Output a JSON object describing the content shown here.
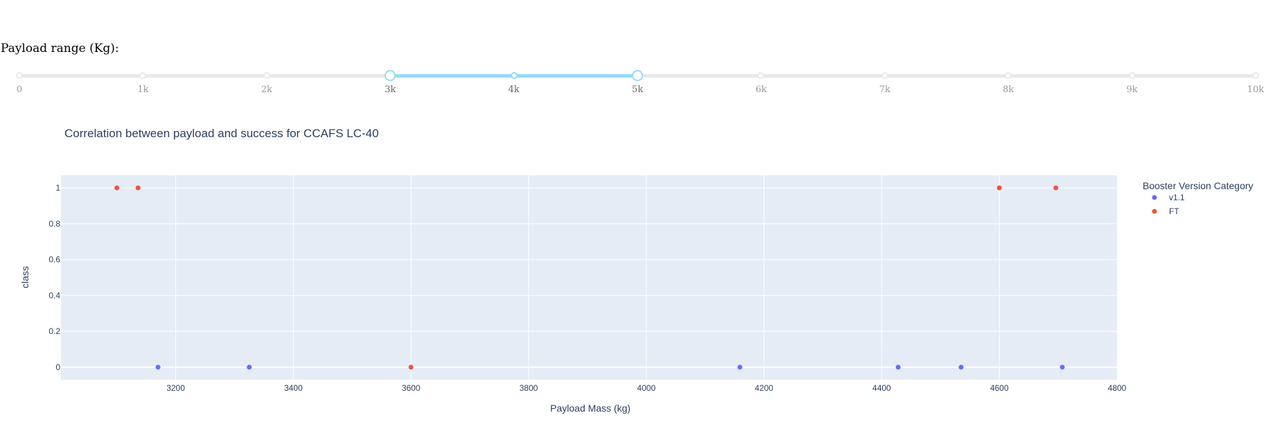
{
  "slider": {
    "label": "Payload range (Kg):",
    "min": 0,
    "max": 10000,
    "selected_range": [
      3000,
      5000
    ],
    "marks": [
      "0",
      "1k",
      "2k",
      "3k",
      "4k",
      "5k",
      "6k",
      "7k",
      "8k",
      "9k",
      "10k"
    ],
    "colors": {
      "track": "#e9e9e9",
      "range": "#96dbfa"
    }
  },
  "chart_data": {
    "type": "scatter",
    "title": "Correlation between payload and success for CCAFS LC-40",
    "xlabel": "Payload Mass (kg)",
    "ylabel": "class",
    "xlim": [
      3005,
      4800
    ],
    "ylim": [
      -0.07,
      1.07
    ],
    "x_ticks": [
      3200,
      3400,
      3600,
      3800,
      4000,
      4200,
      4400,
      4600,
      4800
    ],
    "y_ticks": [
      0,
      0.2,
      0.4,
      0.6,
      0.8,
      1
    ],
    "y_tick_labels": [
      "0",
      "0.2",
      "0.4",
      "0.6",
      "0.8",
      "1"
    ],
    "grid": true,
    "legend_position": "right",
    "legend_title": "Booster Version Category",
    "plot_background": "#e5ecf6",
    "series": [
      {
        "name": "v1.1",
        "color": "#636efa",
        "points": [
          [
            3170,
            0
          ],
          [
            3325,
            0
          ],
          [
            4159,
            0
          ],
          [
            4428,
            0
          ],
          [
            4535,
            0
          ],
          [
            4707,
            0
          ]
        ]
      },
      {
        "name": "FT",
        "color": "#ef553b",
        "points": [
          [
            3100,
            1
          ],
          [
            3136,
            1
          ],
          [
            3600,
            0
          ],
          [
            4600,
            1
          ],
          [
            4696,
            1
          ]
        ]
      }
    ]
  }
}
